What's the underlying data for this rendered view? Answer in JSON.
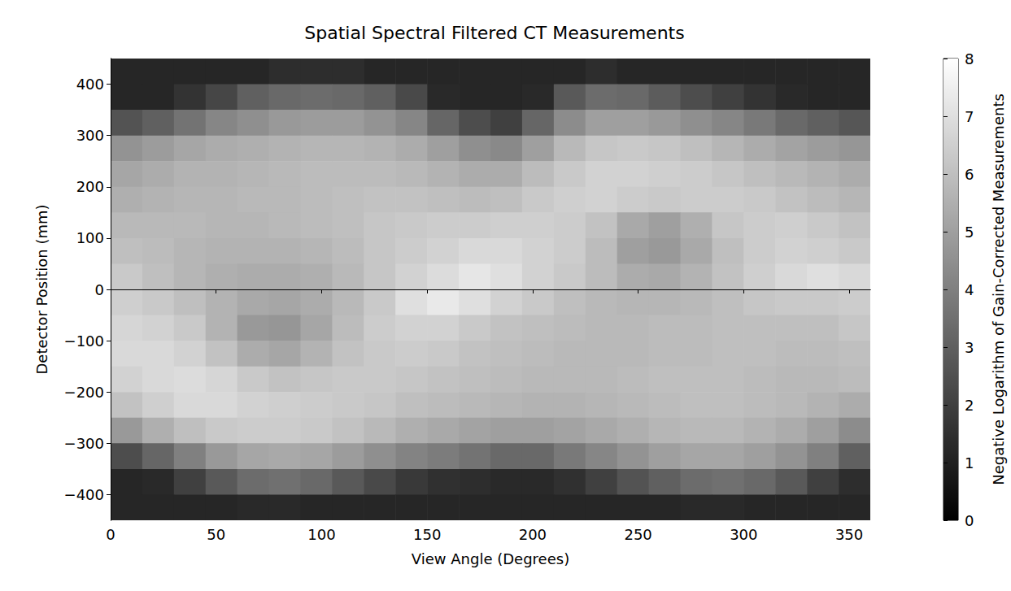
{
  "chart_data": {
    "type": "heatmap",
    "title": "Spatial Spectral Filtered CT Measurements",
    "x_label": "View Angle (Degrees)",
    "y_label": "Detector Position (mm)",
    "grid": false,
    "xlim": [
      0,
      360
    ],
    "ylim": [
      -450,
      450
    ],
    "xticks": [
      0,
      50,
      100,
      150,
      200,
      250,
      300,
      350
    ],
    "yticks": [
      {
        "value": -400,
        "label": "−400"
      },
      {
        "value": -300,
        "label": "−300"
      },
      {
        "value": -200,
        "label": "−200"
      },
      {
        "value": -100,
        "label": "−100"
      },
      0,
      100,
      200,
      300,
      400
    ],
    "colorbar_label": "Negative Logarithm of Gain-Corrected Measurements",
    "colorbar_range": [
      0,
      8
    ],
    "colorbar_ticks": [
      0,
      1,
      2,
      3,
      4,
      5,
      6,
      7,
      8
    ],
    "x": [
      7.5,
      22.5,
      37.5,
      52.5,
      67.5,
      82.5,
      97.5,
      112.5,
      127.5,
      142.5,
      157.5,
      172.5,
      187.5,
      202.5,
      217.5,
      232.5,
      247.5,
      262.5,
      277.5,
      292.5,
      307.5,
      322.5,
      337.5,
      352.5
    ],
    "y": [
      425,
      375,
      325,
      275,
      225,
      175,
      125,
      75,
      25,
      -25,
      -75,
      -125,
      -175,
      -225,
      -275,
      -325,
      -375,
      -425
    ],
    "values": [
      [
        1.2,
        1.2,
        1.2,
        1.2,
        1.2,
        1.4,
        1.4,
        1.4,
        1.2,
        1.2,
        1.2,
        1.2,
        1.2,
        1.2,
        1.2,
        1.4,
        1.2,
        1.2,
        1.2,
        1.2,
        1.2,
        1.2,
        1.2,
        1.2
      ],
      [
        1.2,
        1.2,
        1.6,
        2.2,
        3.0,
        3.3,
        3.4,
        3.3,
        3.0,
        2.3,
        1.3,
        1.2,
        1.2,
        1.3,
        2.8,
        3.4,
        3.3,
        2.9,
        2.4,
        2.0,
        1.6,
        1.3,
        1.2,
        1.2
      ],
      [
        2.6,
        3.0,
        3.6,
        4.2,
        4.5,
        4.8,
        4.9,
        4.9,
        4.6,
        4.2,
        3.2,
        2.4,
        2.0,
        3.2,
        4.4,
        5.0,
        5.0,
        4.8,
        4.5,
        4.2,
        3.8,
        3.3,
        3.0,
        2.7
      ],
      [
        4.6,
        4.9,
        5.2,
        5.4,
        5.5,
        5.6,
        5.7,
        5.7,
        5.6,
        5.4,
        5.0,
        4.5,
        4.3,
        5.0,
        5.8,
        6.2,
        6.3,
        6.2,
        6.0,
        5.7,
        5.4,
        5.1,
        4.9,
        4.7
      ],
      [
        5.2,
        5.4,
        5.6,
        5.6,
        5.7,
        5.8,
        5.9,
        5.9,
        5.9,
        5.8,
        5.6,
        5.4,
        5.4,
        5.9,
        6.3,
        6.6,
        6.6,
        6.5,
        6.4,
        6.2,
        6.0,
        5.8,
        5.6,
        5.4
      ],
      [
        5.5,
        5.6,
        5.7,
        5.7,
        5.8,
        5.8,
        5.9,
        6.0,
        6.1,
        6.1,
        6.0,
        5.9,
        6.0,
        6.3,
        6.5,
        6.6,
        6.4,
        6.3,
        6.4,
        6.4,
        6.3,
        6.1,
        5.9,
        5.7
      ],
      [
        5.8,
        5.8,
        5.8,
        5.7,
        5.7,
        5.8,
        5.9,
        6.0,
        6.2,
        6.3,
        6.4,
        6.4,
        6.5,
        6.5,
        6.4,
        6.1,
        5.3,
        5.0,
        5.5,
        6.2,
        6.4,
        6.5,
        6.3,
        6.1
      ],
      [
        6.0,
        5.9,
        5.7,
        5.6,
        5.6,
        5.6,
        5.7,
        5.9,
        6.2,
        6.4,
        6.6,
        6.8,
        6.8,
        6.6,
        6.4,
        5.9,
        5.0,
        4.8,
        5.3,
        6.0,
        6.4,
        6.6,
        6.5,
        6.3
      ],
      [
        6.3,
        6.0,
        5.7,
        5.5,
        5.4,
        5.4,
        5.5,
        5.8,
        6.2,
        6.6,
        6.9,
        7.2,
        7.0,
        6.6,
        6.3,
        5.9,
        5.4,
        5.3,
        5.6,
        6.1,
        6.5,
        6.8,
        7.0,
        6.8
      ],
      [
        6.5,
        6.3,
        6.0,
        5.6,
        5.3,
        5.2,
        5.4,
        5.8,
        6.3,
        7.0,
        7.3,
        7.0,
        6.6,
        6.3,
        6.0,
        5.8,
        5.7,
        5.7,
        5.8,
        6.0,
        6.2,
        6.3,
        6.3,
        6.4
      ],
      [
        6.7,
        6.6,
        6.3,
        5.6,
        4.8,
        4.7,
        5.2,
        5.9,
        6.4,
        6.6,
        6.6,
        6.3,
        6.1,
        6.0,
        5.9,
        5.8,
        5.8,
        5.9,
        5.9,
        6.0,
        6.0,
        6.0,
        6.0,
        6.2
      ],
      [
        6.8,
        6.8,
        6.6,
        6.1,
        5.4,
        5.2,
        5.6,
        6.1,
        6.3,
        6.4,
        6.3,
        6.1,
        6.0,
        5.9,
        5.8,
        5.8,
        5.8,
        5.9,
        5.9,
        6.0,
        6.0,
        5.9,
        5.9,
        6.0
      ],
      [
        6.6,
        6.8,
        6.9,
        6.7,
        6.3,
        6.1,
        6.2,
        6.3,
        6.3,
        6.2,
        6.1,
        6.0,
        5.9,
        5.8,
        5.8,
        5.8,
        5.9,
        6.0,
        6.0,
        6.0,
        5.9,
        5.8,
        5.8,
        5.9
      ],
      [
        6.1,
        6.5,
        6.8,
        6.8,
        6.6,
        6.5,
        6.4,
        6.3,
        6.2,
        6.0,
        5.9,
        5.8,
        5.7,
        5.6,
        5.6,
        5.7,
        5.8,
        5.9,
        6.0,
        6.0,
        5.9,
        5.8,
        5.6,
        5.4
      ],
      [
        4.8,
        5.5,
        6.0,
        6.3,
        6.4,
        6.4,
        6.3,
        6.1,
        5.8,
        5.5,
        5.3,
        5.1,
        5.0,
        5.0,
        5.1,
        5.3,
        5.5,
        5.7,
        5.8,
        5.8,
        5.6,
        5.4,
        5.0,
        4.4
      ],
      [
        2.4,
        3.2,
        4.0,
        4.8,
        5.2,
        5.3,
        5.2,
        4.9,
        4.5,
        4.1,
        3.9,
        3.6,
        3.3,
        3.3,
        3.8,
        4.2,
        4.6,
        5.0,
        5.2,
        5.2,
        5.0,
        4.6,
        4.0,
        3.0
      ],
      [
        1.2,
        1.3,
        2.0,
        2.8,
        3.4,
        3.5,
        3.3,
        2.8,
        2.3,
        1.8,
        1.5,
        1.4,
        1.3,
        1.3,
        1.5,
        2.0,
        2.6,
        3.0,
        3.4,
        3.5,
        3.3,
        2.8,
        2.0,
        1.4
      ],
      [
        1.2,
        1.2,
        1.2,
        1.2,
        1.3,
        1.3,
        1.2,
        1.2,
        1.2,
        1.2,
        1.2,
        1.2,
        1.2,
        1.2,
        1.2,
        1.2,
        1.2,
        1.2,
        1.3,
        1.3,
        1.2,
        1.2,
        1.2,
        1.2
      ]
    ]
  }
}
